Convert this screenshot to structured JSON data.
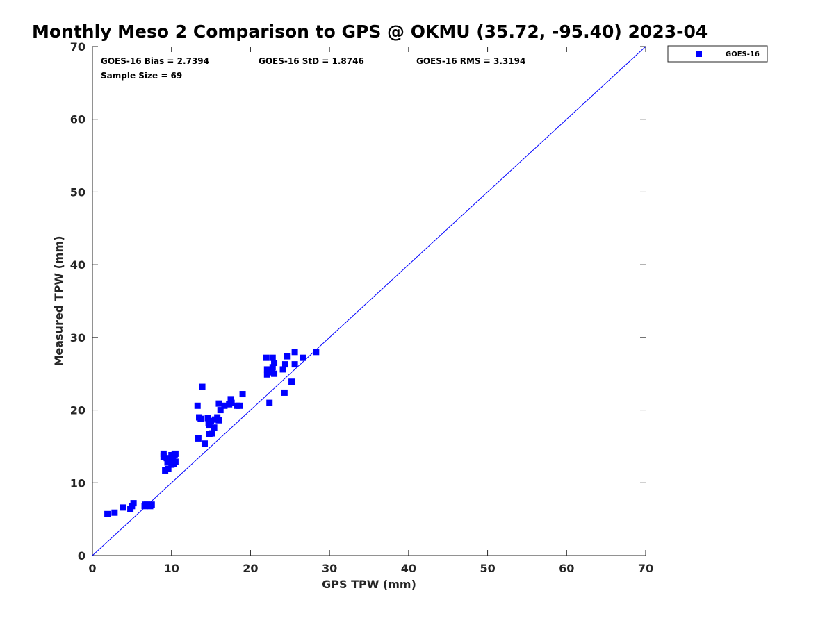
{
  "chart_data": {
    "type": "scatter",
    "title": "Monthly Meso 2 Comparison to GPS @ OKMU (35.72, -95.40) 2023-04",
    "xlabel": "GPS TPW (mm)",
    "ylabel": "Measured TPW (mm)",
    "xlim": [
      0,
      70
    ],
    "ylim": [
      0,
      70
    ],
    "xticks": [
      "0",
      "10",
      "20",
      "30",
      "40",
      "50",
      "60",
      "70"
    ],
    "yticks": [
      "0",
      "10",
      "20",
      "30",
      "40",
      "50",
      "60",
      "70"
    ],
    "grid": false,
    "legend_position": "outside top-right",
    "stats": {
      "bias": "GOES-16 Bias = 2.7394",
      "std": "GOES-16 StD = 1.8746",
      "rms": "GOES-16 RMS = 3.3194",
      "sample_size": "Sample Size = 69"
    },
    "reference_line": {
      "x": [
        0,
        70
      ],
      "y": [
        0,
        70
      ],
      "color": "#0000ff"
    },
    "series": [
      {
        "name": "GOES-16",
        "color": "#0000ff",
        "marker": "square",
        "points": [
          [
            1.9,
            5.7
          ],
          [
            2.8,
            5.9
          ],
          [
            3.9,
            6.6
          ],
          [
            4.8,
            6.4
          ],
          [
            5.0,
            6.8
          ],
          [
            5.2,
            7.2
          ],
          [
            6.6,
            6.8
          ],
          [
            6.7,
            7.0
          ],
          [
            6.9,
            7.0
          ],
          [
            7.1,
            6.9
          ],
          [
            7.3,
            6.8
          ],
          [
            7.5,
            7.0
          ],
          [
            9.0,
            13.6
          ],
          [
            9.0,
            14.0
          ],
          [
            9.2,
            11.7
          ],
          [
            9.4,
            13.4
          ],
          [
            9.5,
            12.8
          ],
          [
            9.6,
            11.9
          ],
          [
            9.8,
            13.0
          ],
          [
            10.0,
            12.5
          ],
          [
            10.0,
            13.8
          ],
          [
            10.2,
            13.2
          ],
          [
            10.3,
            12.6
          ],
          [
            10.4,
            13.9
          ],
          [
            10.5,
            12.9
          ],
          [
            10.5,
            14.0
          ],
          [
            13.3,
            20.6
          ],
          [
            13.4,
            16.1
          ],
          [
            13.5,
            19.0
          ],
          [
            13.7,
            18.8
          ],
          [
            13.9,
            23.2
          ],
          [
            14.2,
            15.4
          ],
          [
            14.6,
            18.9
          ],
          [
            14.7,
            18.2
          ],
          [
            14.8,
            16.7
          ],
          [
            14.8,
            17.9
          ],
          [
            15.0,
            18.5
          ],
          [
            15.1,
            16.8
          ],
          [
            15.4,
            17.6
          ],
          [
            15.5,
            18.7
          ],
          [
            15.8,
            19.0
          ],
          [
            16.0,
            18.6
          ],
          [
            16.0,
            20.9
          ],
          [
            16.2,
            20.0
          ],
          [
            16.7,
            20.6
          ],
          [
            17.3,
            20.8
          ],
          [
            17.5,
            21.5
          ],
          [
            17.6,
            21.0
          ],
          [
            18.3,
            20.6
          ],
          [
            18.6,
            20.6
          ],
          [
            19.0,
            22.2
          ],
          [
            22.0,
            27.2
          ],
          [
            22.1,
            25.6
          ],
          [
            22.1,
            24.9
          ],
          [
            22.4,
            21.0
          ],
          [
            22.7,
            25.2
          ],
          [
            22.8,
            25.9
          ],
          [
            22.8,
            27.2
          ],
          [
            23.0,
            26.5
          ],
          [
            23.0,
            25.0
          ],
          [
            24.1,
            25.6
          ],
          [
            24.3,
            22.4
          ],
          [
            24.4,
            26.3
          ],
          [
            24.6,
            27.4
          ],
          [
            25.2,
            23.9
          ],
          [
            25.6,
            26.3
          ],
          [
            25.6,
            28.0
          ],
          [
            26.6,
            27.2
          ],
          [
            28.3,
            28.0
          ]
        ]
      }
    ]
  }
}
